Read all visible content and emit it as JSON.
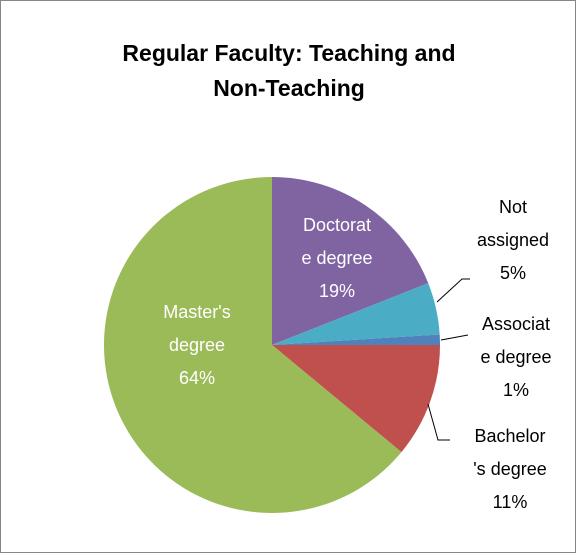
{
  "chart_data": {
    "type": "pie",
    "title": "Regular Faculty: Teaching and Non-Teaching",
    "categories": [
      "Doctorate degree",
      "Not assigned",
      "Associate degree",
      "Bachelor's degree",
      "Master's degree"
    ],
    "values": [
      19,
      5,
      1,
      11,
      64
    ],
    "value_labels": [
      "19%",
      "5%",
      "1%",
      "11%",
      "64%"
    ],
    "colors": [
      "#8064a2",
      "#4bacc6",
      "#4f81bd",
      "#c0504d",
      "#9bbb59"
    ]
  }
}
